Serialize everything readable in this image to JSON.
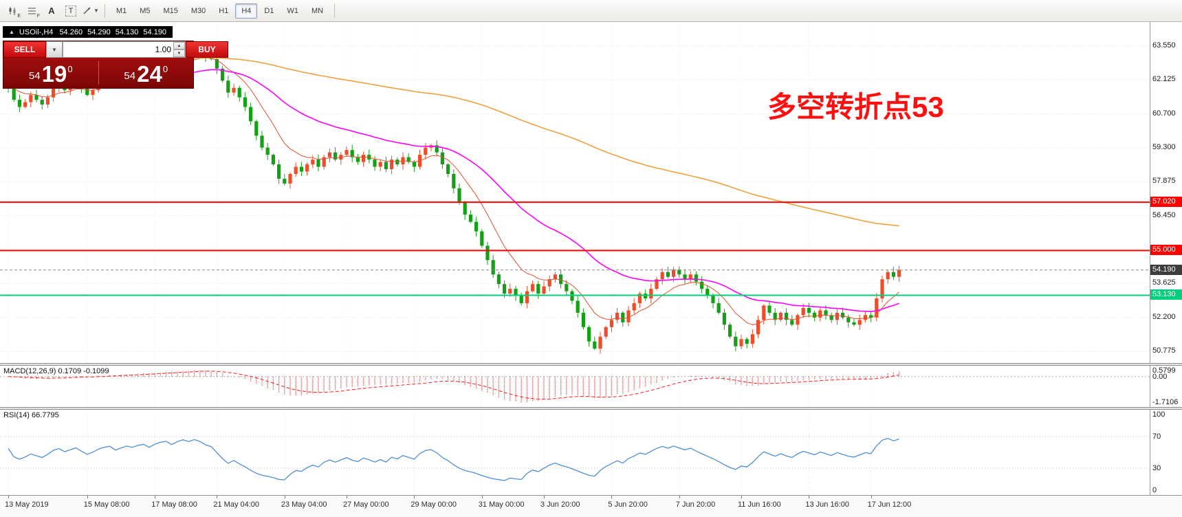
{
  "toolbar": {
    "icon1_sub": "E",
    "icon2_sub": "F",
    "tool_a": "A",
    "tool_t": "T",
    "timeframes": [
      "M1",
      "M5",
      "M15",
      "M30",
      "H1",
      "H4",
      "D1",
      "W1",
      "MN"
    ],
    "active_timeframe": "H4"
  },
  "icons": {
    "collapse": "▲",
    "dropdown": "▼",
    "caret_up": "▲",
    "caret_down": "▼"
  },
  "symbol_bar": {
    "title": "USOil-,H4",
    "open": "54.260",
    "high": "54.290",
    "low": "54.130",
    "close": "54.190"
  },
  "trade": {
    "sell_label": "SELL",
    "buy_label": "BUY",
    "volume": "1.00",
    "bid_int": "54",
    "bid_main": "19",
    "bid_sup": "0",
    "ask_int": "54",
    "ask_main": "24",
    "ask_sup": "0"
  },
  "annotation": {
    "text": "多空转折点53"
  },
  "price_axis": [
    {
      "label": "63.550",
      "value": 63.55
    },
    {
      "label": "62.125",
      "value": 62.125
    },
    {
      "label": "60.700",
      "value": 60.7
    },
    {
      "label": "59.300",
      "value": 59.3
    },
    {
      "label": "57.875",
      "value": 57.875
    },
    {
      "label": "56.450",
      "value": 56.45
    },
    {
      "label": "53.625",
      "value": 53.625
    },
    {
      "label": "52.200",
      "value": 52.2
    },
    {
      "label": "50.775",
      "value": 50.775
    }
  ],
  "hlines": [
    {
      "label": "57.020",
      "value": 57.02,
      "color": "#ff0000"
    },
    {
      "label": "55.000",
      "value": 55.0,
      "color": "#ff0000"
    },
    {
      "label": "53.130",
      "value": 53.13,
      "color": "#00cf7c"
    }
  ],
  "current_price": {
    "label": "54.190",
    "value": 54.19
  },
  "macd": {
    "name": "MACD(12,26,9)",
    "value_main": "0.1709",
    "value_signal": "-0.1099",
    "axis": [
      {
        "label": "0.5799",
        "value": 0.5799
      },
      {
        "label": "0.00",
        "value": 0
      },
      {
        "label": "-1.7106",
        "value": -1.7106
      }
    ]
  },
  "rsi": {
    "name": "RSI(14)",
    "value": "66.7795",
    "axis": [
      {
        "label": "100",
        "value": 100
      },
      {
        "label": "70",
        "value": 70
      },
      {
        "label": "30",
        "value": 30
      },
      {
        "label": "0",
        "value": 0
      }
    ],
    "levels": [
      70,
      30
    ]
  },
  "time_axis": [
    {
      "label": "13 May 2019",
      "index": 0
    },
    {
      "label": "15 May 08:00",
      "index": 14
    },
    {
      "label": "17 May 08:00",
      "index": 26
    },
    {
      "label": "21 May 04:00",
      "index": 37
    },
    {
      "label": "23 May 04:00",
      "index": 49
    },
    {
      "label": "27 May 00:00",
      "index": 60
    },
    {
      "label": "29 May 00:00",
      "index": 72
    },
    {
      "label": "31 May 00:00",
      "index": 84
    },
    {
      "label": "3 Jun 20:00",
      "index": 95
    },
    {
      "label": "5 Jun 20:00",
      "index": 107
    },
    {
      "label": "7 Jun 20:00",
      "index": 119
    },
    {
      "label": "11 Jun 16:00",
      "index": 130
    },
    {
      "label": "13 Jun 16:00",
      "index": 142
    },
    {
      "label": "17 Jun 12:00",
      "index": 153
    }
  ],
  "colors": {
    "candle_up": "#ee4d2a",
    "candle_down": "#14a014",
    "ma_fast": "#e0512b",
    "ma_mid": "#ff00ff",
    "ma_slow": "#eea13c",
    "line_red": "#ff0000",
    "line_green": "#00cf7c",
    "macd_hist": "#cf5050",
    "macd_signal": "#ff1a1a",
    "rsi_line": "#4e8fd4",
    "annotation": "#ff0f0f",
    "current_tag_bg": "#3c3c3c"
  },
  "chart_data": {
    "type": "candlestick",
    "symbol": "USOil-",
    "timeframe": "H4",
    "title": "USOil-,H4",
    "last_ohlc": {
      "open": 54.26,
      "high": 54.29,
      "low": 54.13,
      "close": 54.19
    },
    "price_axis_range": [
      50.3,
      64.55
    ],
    "support_resistance": [
      57.02,
      55.0,
      53.13
    ],
    "open_first": 61.9,
    "closes": [
      61.8,
      61.3,
      61.0,
      61.2,
      61.5,
      61.3,
      61.1,
      61.4,
      61.8,
      62.0,
      61.7,
      61.9,
      62.1,
      61.8,
      61.5,
      61.7,
      62.0,
      62.2,
      62.3,
      62.0,
      62.2,
      62.4,
      62.3,
      62.5,
      62.6,
      62.4,
      62.7,
      62.9,
      63.0,
      62.8,
      63.1,
      63.3,
      63.2,
      63.4,
      63.3,
      63.1,
      63.0,
      62.6,
      62.1,
      61.6,
      61.8,
      61.4,
      61.0,
      60.4,
      59.8,
      59.3,
      59.0,
      58.6,
      58.0,
      57.8,
      58.2,
      58.5,
      58.3,
      58.6,
      58.8,
      58.5,
      58.9,
      59.1,
      58.8,
      59.0,
      59.2,
      58.9,
      58.7,
      59.0,
      58.8,
      58.5,
      58.7,
      58.4,
      58.8,
      58.6,
      58.9,
      58.7,
      58.5,
      59.0,
      59.3,
      59.4,
      59.1,
      58.6,
      58.2,
      57.6,
      57.0,
      56.5,
      56.2,
      55.8,
      55.2,
      54.6,
      54.0,
      53.6,
      53.2,
      53.4,
      53.1,
      52.8,
      53.3,
      53.6,
      53.2,
      53.5,
      53.8,
      54.0,
      53.6,
      53.3,
      52.9,
      52.4,
      51.8,
      51.2,
      50.9,
      51.4,
      51.8,
      52.1,
      52.4,
      52.0,
      52.5,
      52.8,
      53.2,
      53.0,
      53.4,
      53.8,
      54.1,
      53.9,
      54.2,
      54.0,
      53.8,
      54.0,
      53.7,
      53.4,
      53.1,
      52.8,
      52.4,
      51.9,
      51.4,
      51.0,
      51.3,
      51.1,
      51.5,
      52.1,
      52.7,
      52.4,
      52.1,
      52.4,
      52.1,
      51.9,
      52.3,
      52.6,
      52.4,
      52.2,
      52.5,
      52.3,
      52.1,
      52.4,
      52.2,
      52.0,
      51.9,
      52.1,
      52.3,
      52.2,
      53.0,
      53.8,
      54.1,
      53.9,
      54.19
    ]
  }
}
